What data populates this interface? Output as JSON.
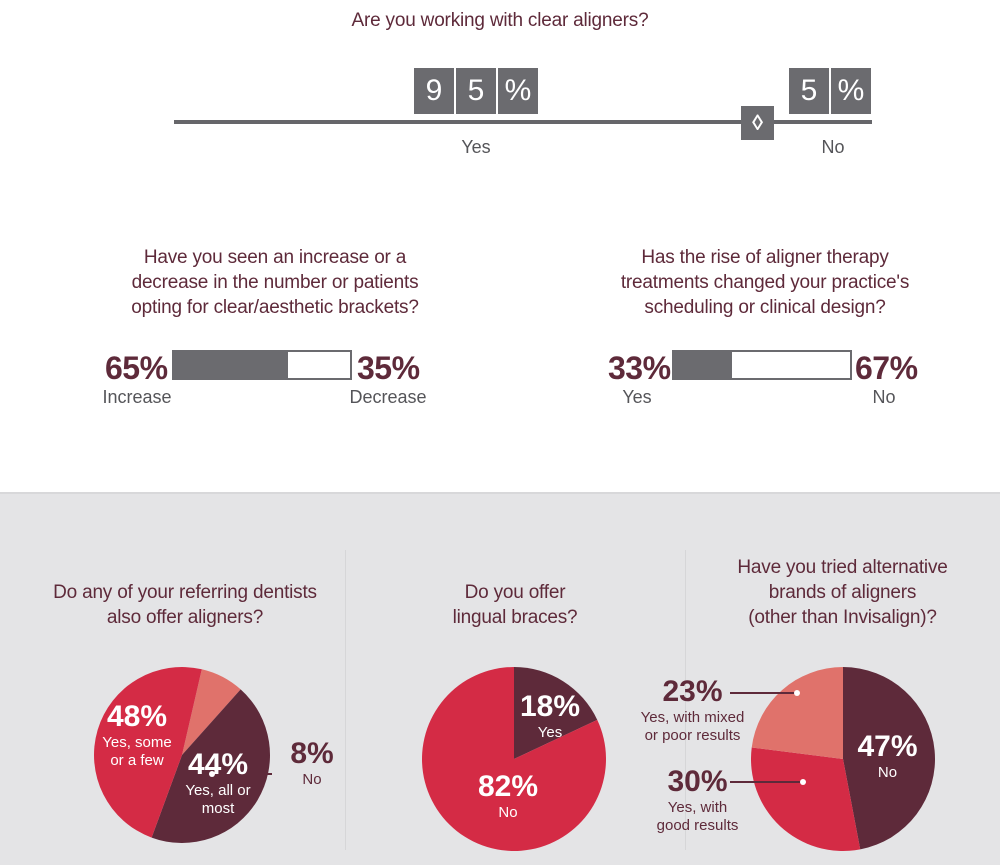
{
  "colors": {
    "maroon": "#5e2a3a",
    "red": "#d42b45",
    "salmon": "#e0726b",
    "gray": "#6b6b6f",
    "panel": "#e4e4e6"
  },
  "q1": {
    "title": "Are you working with clear aligners?",
    "yes_digits": [
      "9",
      "5",
      "%"
    ],
    "no_digits": [
      "5",
      "%"
    ],
    "marker": "◊",
    "yes_label": "Yes",
    "no_label": "No"
  },
  "q2": {
    "title_lines": [
      "Have you seen an increase or a",
      "decrease in the number or patients",
      "opting for clear/aesthetic brackets?"
    ],
    "left_pct": "65%",
    "left_label": "Increase",
    "right_pct": "35%",
    "right_label": "Decrease",
    "fill_fraction": 0.65
  },
  "q3": {
    "title_lines": [
      "Has the rise of aligner therapy",
      "treatments changed your practice's",
      "scheduling or clinical design?"
    ],
    "left_pct": "33%",
    "left_label": "Yes",
    "right_pct": "67%",
    "right_label": "No",
    "fill_fraction": 0.33
  },
  "q4": {
    "title_lines": [
      "Do any of your referring dentists",
      "also offer aligners?"
    ],
    "slice1_pct": "48%",
    "slice1_label_lines": [
      "Yes, some",
      "or a few"
    ],
    "slice2_pct": "44%",
    "slice2_label_lines": [
      "Yes, all or",
      "most"
    ],
    "slice3_pct": "8%",
    "slice3_label": "No"
  },
  "q5": {
    "title_lines": [
      "Do you offer",
      "lingual braces?"
    ],
    "slice1_pct": "18%",
    "slice1_label": "Yes",
    "slice2_pct": "82%",
    "slice2_label": "No"
  },
  "q6": {
    "title_lines": [
      "Have you tried alternative",
      "brands of aligners",
      "(other than Invisalign)?"
    ],
    "slice1_pct": "47%",
    "slice1_label": "No",
    "slice2_pct": "30%",
    "slice2_label_lines": [
      "Yes, with",
      "good results"
    ],
    "slice3_pct": "23%",
    "slice3_label_lines": [
      "Yes, with mixed",
      "or poor results"
    ]
  },
  "chart_data": [
    {
      "type": "bar",
      "title": "Are you working with clear aligners?",
      "categories": [
        "Yes",
        "No"
      ],
      "values": [
        95,
        5
      ],
      "unit": "%"
    },
    {
      "type": "bar",
      "title": "Have you seen an increase or a decrease in the number or patients opting for clear/aesthetic brackets?",
      "categories": [
        "Increase",
        "Decrease"
      ],
      "values": [
        65,
        35
      ],
      "unit": "%"
    },
    {
      "type": "bar",
      "title": "Has the rise of aligner therapy treatments changed your practice's scheduling or clinical design?",
      "categories": [
        "Yes",
        "No"
      ],
      "values": [
        33,
        67
      ],
      "unit": "%"
    },
    {
      "type": "pie",
      "title": "Do any of your referring dentists also offer aligners?",
      "categories": [
        "Yes, some or a few",
        "Yes, all or most",
        "No"
      ],
      "values": [
        48,
        44,
        8
      ],
      "unit": "%"
    },
    {
      "type": "pie",
      "title": "Do you offer lingual braces?",
      "categories": [
        "Yes",
        "No"
      ],
      "values": [
        18,
        82
      ],
      "unit": "%"
    },
    {
      "type": "pie",
      "title": "Have you tried alternative brands of aligners (other than Invisalign)?",
      "categories": [
        "No",
        "Yes, with good results",
        "Yes, with mixed or poor results"
      ],
      "values": [
        47,
        30,
        23
      ],
      "unit": "%"
    }
  ]
}
